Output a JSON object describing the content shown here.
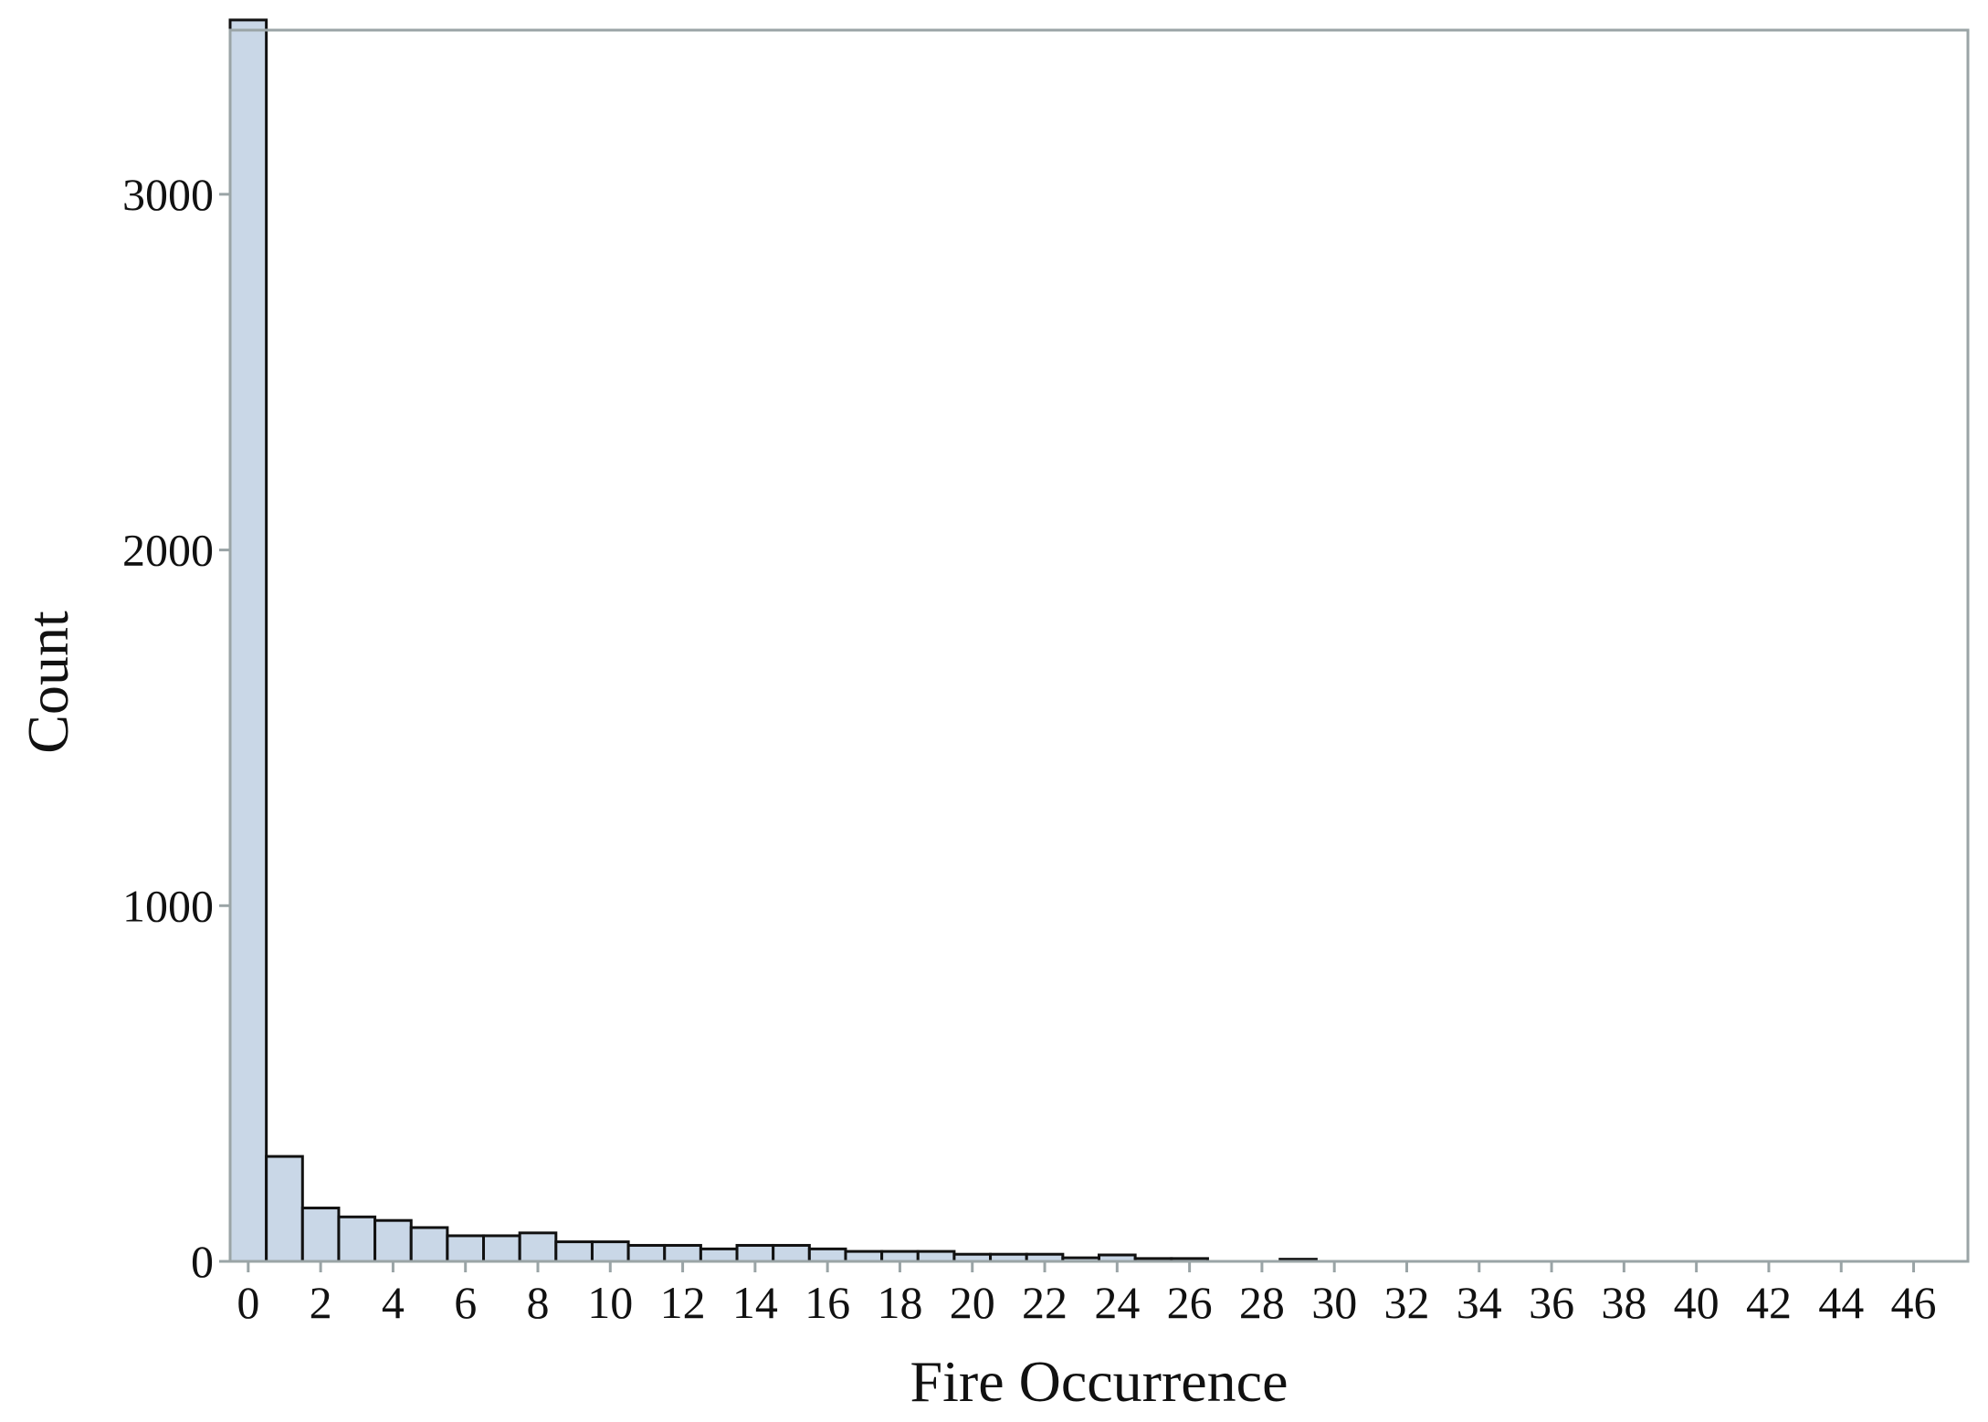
{
  "chart_data": {
    "type": "bar",
    "xlabel": "Fire Occurrence",
    "ylabel": "Count",
    "xlim": [
      -0.5,
      47.5
    ],
    "ylim": [
      0,
      3500
    ],
    "x_ticks": [
      0,
      2,
      4,
      6,
      8,
      10,
      12,
      14,
      16,
      18,
      20,
      22,
      24,
      26,
      28,
      30,
      32,
      34,
      36,
      38,
      40,
      42,
      44,
      46
    ],
    "y_ticks": [
      0,
      1000,
      2000,
      3000
    ],
    "bin_width": 1,
    "bins": [
      {
        "x": 0,
        "count": 3490
      },
      {
        "x": 1,
        "count": 295
      },
      {
        "x": 2,
        "count": 150
      },
      {
        "x": 3,
        "count": 125
      },
      {
        "x": 4,
        "count": 115
      },
      {
        "x": 5,
        "count": 95
      },
      {
        "x": 6,
        "count": 72
      },
      {
        "x": 7,
        "count": 72
      },
      {
        "x": 8,
        "count": 80
      },
      {
        "x": 9,
        "count": 55
      },
      {
        "x": 10,
        "count": 55
      },
      {
        "x": 11,
        "count": 45
      },
      {
        "x": 12,
        "count": 45
      },
      {
        "x": 13,
        "count": 35
      },
      {
        "x": 14,
        "count": 45
      },
      {
        "x": 15,
        "count": 45
      },
      {
        "x": 16,
        "count": 35
      },
      {
        "x": 17,
        "count": 28
      },
      {
        "x": 18,
        "count": 28
      },
      {
        "x": 19,
        "count": 28
      },
      {
        "x": 20,
        "count": 20
      },
      {
        "x": 21,
        "count": 20
      },
      {
        "x": 22,
        "count": 20
      },
      {
        "x": 23,
        "count": 10
      },
      {
        "x": 24,
        "count": 18
      },
      {
        "x": 25,
        "count": 8
      },
      {
        "x": 26,
        "count": 8
      },
      {
        "x": 29,
        "count": 6
      }
    ],
    "bar_fill": "#c9d7e7",
    "bar_stroke": "#111111",
    "frame_color": "#9aa4a6",
    "grid": false,
    "legend": "none"
  }
}
